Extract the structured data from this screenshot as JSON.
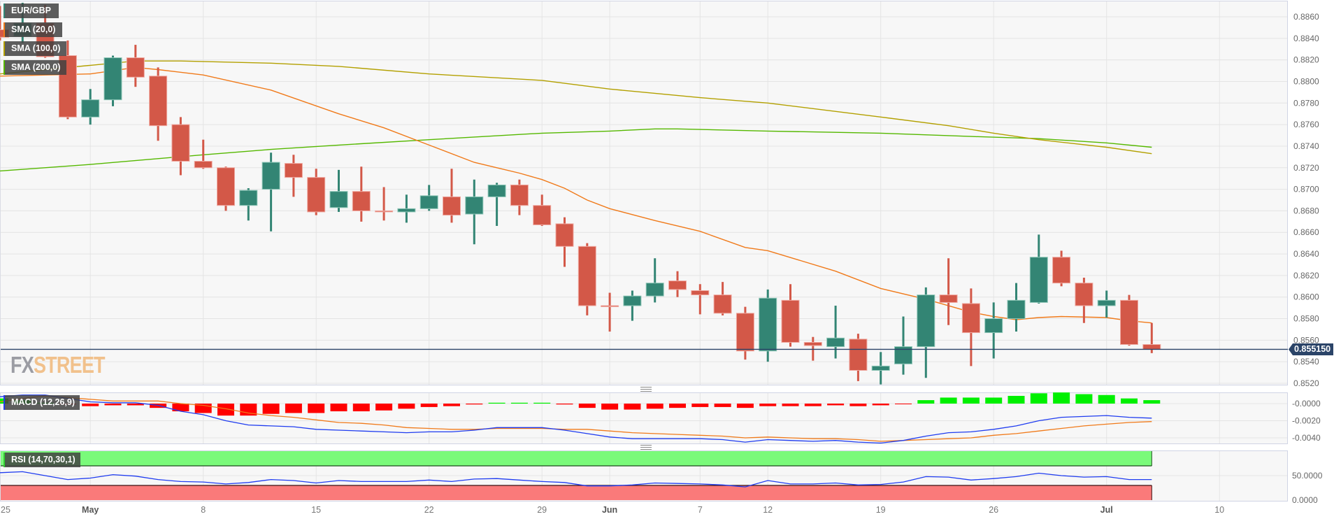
{
  "legends": {
    "symbol": "EUR/GBP",
    "sma20": "SMA (20,0)",
    "sma100": "SMA (100,0)",
    "sma200": "SMA (200,0)",
    "macd": "MACD (12,26,9)",
    "rsi": "RSI (14,70,30,1)"
  },
  "logo": {
    "part1": "FX",
    "part2": "STREET"
  },
  "current_price": "0.855150",
  "colors": {
    "up": "#338574",
    "down": "#d35848",
    "sma20": "#f07a1a",
    "sma100": "#b3a000",
    "sma200": "#55b800",
    "macd_line": "#1f3cf0",
    "signal_line": "#f07a1a",
    "hist_up": "#00f000",
    "hist_down": "#ff0000",
    "rsi_line": "#1f3cf0",
    "rsi_overbought": "#7afa7a",
    "rsi_oversold": "#fa7a7a",
    "price_line": "#2b4468"
  },
  "chart_data": {
    "type": "candlestick",
    "symbol": "EUR/GBP",
    "x_tick_labels": [
      [
        "04-25",
        "25"
      ],
      [
        "05-01",
        "May"
      ],
      [
        "05-08",
        "8"
      ],
      [
        "05-15",
        "15"
      ],
      [
        "05-22",
        "22"
      ],
      [
        "05-29",
        "29"
      ],
      [
        "06-01",
        "Jun"
      ],
      [
        "06-07",
        "7"
      ],
      [
        "06-12",
        "12"
      ],
      [
        "06-19",
        "19"
      ],
      [
        "06-26",
        "26"
      ],
      [
        "07-03",
        "Jul"
      ],
      [
        "07-10",
        "10"
      ]
    ],
    "price_axis": {
      "ticks": [
        "0.8860",
        "0.8840",
        "0.8820",
        "0.8800",
        "0.8780",
        "0.8760",
        "0.8740",
        "0.8720",
        "0.8700",
        "0.8680",
        "0.8660",
        "0.8640",
        "0.8620",
        "0.8600",
        "0.8580",
        "0.8560",
        "0.8540",
        "0.8520"
      ],
      "range": [
        0.8511,
        0.8876
      ]
    },
    "candles_columns": [
      "date",
      "open",
      "high",
      "low",
      "close"
    ],
    "candles": [
      [
        "04-25",
        0.8848,
        0.887,
        0.8838,
        0.8841
      ],
      [
        "04-26",
        0.8842,
        0.8873,
        0.8836,
        0.8854
      ],
      [
        "04-27",
        0.8854,
        0.8871,
        0.8822,
        0.8823
      ],
      [
        "04-28",
        0.8824,
        0.8838,
        0.8765,
        0.8767
      ],
      [
        "05-01",
        0.8767,
        0.8793,
        0.876,
        0.8783
      ],
      [
        "05-02",
        0.8783,
        0.8824,
        0.8777,
        0.8822
      ],
      [
        "05-03",
        0.8822,
        0.8834,
        0.8795,
        0.8804
      ],
      [
        "05-04",
        0.8805,
        0.8813,
        0.8745,
        0.8759
      ],
      [
        "05-05",
        0.876,
        0.8767,
        0.8713,
        0.8726
      ],
      [
        "05-08",
        0.8726,
        0.8746,
        0.8719,
        0.872
      ],
      [
        "05-09",
        0.872,
        0.8721,
        0.868,
        0.8685
      ],
      [
        "05-10",
        0.8685,
        0.8701,
        0.8671,
        0.8699
      ],
      [
        "05-11",
        0.87,
        0.8734,
        0.8661,
        0.8725
      ],
      [
        "05-12",
        0.8724,
        0.8732,
        0.8693,
        0.8711
      ],
      [
        "05-15",
        0.8711,
        0.8719,
        0.8676,
        0.8679
      ],
      [
        "05-16",
        0.8683,
        0.8718,
        0.8679,
        0.8698
      ],
      [
        "05-17",
        0.8698,
        0.8721,
        0.867,
        0.868
      ],
      [
        "05-18",
        0.868,
        0.8702,
        0.8671,
        0.86795
      ],
      [
        "05-19",
        0.8679,
        0.8695,
        0.8669,
        0.8682
      ],
      [
        "05-22",
        0.8682,
        0.8704,
        0.868,
        0.8694
      ],
      [
        "05-23",
        0.8693,
        0.8719,
        0.8669,
        0.8676
      ],
      [
        "05-24",
        0.8677,
        0.8709,
        0.8649,
        0.8693
      ],
      [
        "05-25",
        0.8693,
        0.8706,
        0.8666,
        0.8704
      ],
      [
        "05-26",
        0.8704,
        0.8709,
        0.8676,
        0.8685
      ],
      [
        "05-29",
        0.8685,
        0.8695,
        0.8666,
        0.8667
      ],
      [
        "05-30",
        0.8668,
        0.8674,
        0.8628,
        0.8647
      ],
      [
        "05-31",
        0.8647,
        0.865,
        0.8583,
        0.8592
      ],
      [
        "06-01",
        0.8592,
        0.8604,
        0.8568,
        0.85915
      ],
      [
        "06-02",
        0.8592,
        0.8606,
        0.8578,
        0.8601
      ],
      [
        "06-05",
        0.8601,
        0.8636,
        0.8595,
        0.8613
      ],
      [
        "06-06",
        0.8615,
        0.8624,
        0.86,
        0.8607
      ],
      [
        "06-07",
        0.8606,
        0.8612,
        0.8584,
        0.8602
      ],
      [
        "06-08",
        0.8602,
        0.8614,
        0.8583,
        0.8585
      ],
      [
        "06-09",
        0.8585,
        0.8591,
        0.8542,
        0.855
      ],
      [
        "06-12",
        0.855,
        0.8607,
        0.854,
        0.8599
      ],
      [
        "06-13",
        0.8597,
        0.8612,
        0.8554,
        0.8558
      ],
      [
        "06-14",
        0.8558,
        0.8563,
        0.8541,
        0.8555
      ],
      [
        "06-15",
        0.8554,
        0.8592,
        0.8543,
        0.8562
      ],
      [
        "06-16",
        0.8561,
        0.8566,
        0.8522,
        0.8532
      ],
      [
        "06-19",
        0.8532,
        0.8549,
        0.8519,
        0.8536
      ],
      [
        "06-20",
        0.8538,
        0.8582,
        0.8528,
        0.8554
      ],
      [
        "06-21",
        0.8554,
        0.8609,
        0.8525,
        0.8602
      ],
      [
        "06-22",
        0.8602,
        0.8636,
        0.8574,
        0.8595
      ],
      [
        "06-23",
        0.8594,
        0.8608,
        0.8536,
        0.8567
      ],
      [
        "06-26",
        0.8567,
        0.8595,
        0.8543,
        0.858
      ],
      [
        "06-27",
        0.858,
        0.8613,
        0.8568,
        0.8597
      ],
      [
        "06-28",
        0.8595,
        0.8658,
        0.8594,
        0.8637
      ],
      [
        "06-29",
        0.8637,
        0.8643,
        0.861,
        0.8613
      ],
      [
        "06-30",
        0.8613,
        0.8618,
        0.8576,
        0.8592
      ],
      [
        "07-03",
        0.8592,
        0.8606,
        0.8581,
        0.8597
      ],
      [
        "07-04",
        0.8597,
        0.8602,
        0.8555,
        0.8556
      ],
      [
        "07-05",
        0.8556,
        0.8576,
        0.8548,
        0.85515
      ]
    ],
    "sma20": [
      [
        "04-25",
        0.8805
      ],
      [
        "05-01",
        0.8807
      ],
      [
        "05-03",
        0.8813
      ],
      [
        "05-04",
        0.8811
      ],
      [
        "05-08",
        0.8806
      ],
      [
        "05-11",
        0.8792
      ],
      [
        "05-16",
        0.877
      ],
      [
        "05-18",
        0.8757
      ],
      [
        "05-22",
        0.8741
      ],
      [
        "05-24",
        0.8725
      ],
      [
        "05-25",
        0.872
      ],
      [
        "05-26",
        0.8715
      ],
      [
        "05-29",
        0.8709
      ],
      [
        "05-30",
        0.8701
      ],
      [
        "05-31",
        0.869
      ],
      [
        "06-01",
        0.8682
      ],
      [
        "06-05",
        0.8671
      ],
      [
        "06-07",
        0.8661
      ],
      [
        "06-09",
        0.8646
      ],
      [
        "06-12",
        0.8643
      ],
      [
        "06-15",
        0.8624
      ],
      [
        "06-19",
        0.8608
      ],
      [
        "06-21",
        0.8598
      ],
      [
        "06-23",
        0.8586
      ],
      [
        "06-26",
        0.8582
      ],
      [
        "06-27",
        0.8579
      ],
      [
        "06-28",
        0.8581
      ],
      [
        "06-29",
        0.8582
      ],
      [
        "07-03",
        0.8581
      ],
      [
        "07-04",
        0.8578
      ],
      [
        "07-05",
        0.8576
      ]
    ],
    "sma100": [
      [
        "04-25",
        0.8807
      ],
      [
        "05-01",
        0.8815
      ],
      [
        "05-03",
        0.8819
      ],
      [
        "05-05",
        0.8819
      ],
      [
        "05-11",
        0.8817
      ],
      [
        "05-16",
        0.8814
      ],
      [
        "05-22",
        0.8807
      ],
      [
        "05-29",
        0.8801
      ],
      [
        "06-01",
        0.8793
      ],
      [
        "06-05",
        0.8789
      ],
      [
        "06-07",
        0.8785
      ],
      [
        "06-12",
        0.878
      ],
      [
        "06-19",
        0.8767
      ],
      [
        "06-22",
        0.8759
      ],
      [
        "06-26",
        0.8752
      ],
      [
        "06-28",
        0.8746
      ],
      [
        "07-03",
        0.8739
      ],
      [
        "07-05",
        0.8733
      ]
    ],
    "sma200": [
      [
        "04-25",
        0.8717
      ],
      [
        "05-01",
        0.8723
      ],
      [
        "05-08",
        0.8732
      ],
      [
        "05-11",
        0.8737
      ],
      [
        "05-16",
        0.8741
      ],
      [
        "05-22",
        0.8746
      ],
      [
        "05-29",
        0.8752
      ],
      [
        "06-01",
        0.8754
      ],
      [
        "06-05",
        0.8756
      ],
      [
        "06-06",
        0.8756
      ],
      [
        "06-12",
        0.8754
      ],
      [
        "06-19",
        0.8752
      ],
      [
        "06-23",
        0.8749
      ],
      [
        "06-28",
        0.8747
      ],
      [
        "07-03",
        0.8743
      ],
      [
        "07-05",
        0.8739
      ]
    ],
    "macd_axis": {
      "ticks": [
        "-0.0000",
        "-0.0020",
        "-0.0040"
      ],
      "range": [
        -0.0047,
        0.0013
      ]
    },
    "macd_histogram": [
      0.0006,
      0.0004,
      0.0001,
      -0.0001,
      -0.0003,
      -0.0002,
      -0.0002,
      -0.0005,
      -0.0009,
      -0.0011,
      -0.0014,
      -0.0014,
      -0.0012,
      -0.0011,
      -0.0011,
      -0.0009,
      -0.0009,
      -0.0008,
      -0.0006,
      -0.0004,
      -0.0003,
      -0.0001,
      0.0001,
      0.0001,
      0.0001,
      -0.0001,
      -0.0005,
      -0.0007,
      -0.0007,
      -0.0006,
      -0.0005,
      -0.0004,
      -0.0004,
      -0.0005,
      -0.0003,
      -0.0003,
      -0.0003,
      -0.0002,
      -0.0003,
      -0.0002,
      -5e-05,
      0.0004,
      0.0007,
      0.0007,
      0.0007,
      0.0009,
      0.0012,
      0.0013,
      0.0011,
      0.001,
      0.0006,
      0.0004
    ],
    "macd_line": [
      0.0008,
      0.001,
      0.001,
      0.0006,
      0.0002,
      0.0001,
      0.0001,
      -0.0002,
      -0.0009,
      -0.0013,
      -0.002,
      -0.0025,
      -0.0026,
      -0.0027,
      -0.003,
      -0.0031,
      -0.0032,
      -0.0033,
      -0.0034,
      -0.0033,
      -0.0033,
      -0.0031,
      -0.0028,
      -0.0028,
      -0.0028,
      -0.0031,
      -0.0035,
      -0.0039,
      -0.0041,
      -0.0041,
      -0.0041,
      -0.0041,
      -0.0042,
      -0.0045,
      -0.0042,
      -0.0043,
      -0.0044,
      -0.0043,
      -0.0045,
      -0.0046,
      -0.0043,
      -0.0038,
      -0.0034,
      -0.0033,
      -0.003,
      -0.0026,
      -0.002,
      -0.0016,
      -0.0015,
      -0.0014,
      -0.0016,
      -0.0017
    ],
    "signal_line": [
      0.0002,
      0.0006,
      0.0009,
      0.0007,
      0.0005,
      0.0003,
      0.0003,
      0.0003,
      0.0,
      -0.0002,
      -0.0006,
      -0.0011,
      -0.0014,
      -0.0016,
      -0.0019,
      -0.0022,
      -0.0023,
      -0.0025,
      -0.0028,
      -0.0029,
      -0.003,
      -0.003,
      -0.0029,
      -0.0029,
      -0.0029,
      -0.003,
      -0.003,
      -0.0032,
      -0.0034,
      -0.0035,
      -0.0036,
      -0.0037,
      -0.0038,
      -0.004,
      -0.0039,
      -0.004,
      -0.0041,
      -0.0041,
      -0.0042,
      -0.0044,
      -0.0043,
      -0.0042,
      -0.0041,
      -0.004,
      -0.0037,
      -0.0035,
      -0.0032,
      -0.0029,
      -0.0026,
      -0.0024,
      -0.0022,
      -0.0021
    ],
    "rsi_axis": {
      "ticks": [
        "50.0000",
        "0.0000"
      ],
      "range": [
        0,
        100
      ],
      "overbought": 70,
      "oversold": 30
    },
    "rsi": [
      56,
      58,
      50,
      42,
      45,
      52,
      49,
      42,
      38,
      37,
      33,
      36,
      42,
      40,
      35,
      40,
      38,
      38,
      38,
      41,
      38,
      43,
      44,
      41,
      38,
      36,
      29,
      29,
      31,
      35,
      34,
      33,
      31,
      27,
      40,
      33,
      33,
      35,
      31,
      32,
      37,
      48,
      47,
      41,
      44,
      48,
      55,
      50,
      47,
      48,
      42,
      42
    ],
    "grid": true
  }
}
